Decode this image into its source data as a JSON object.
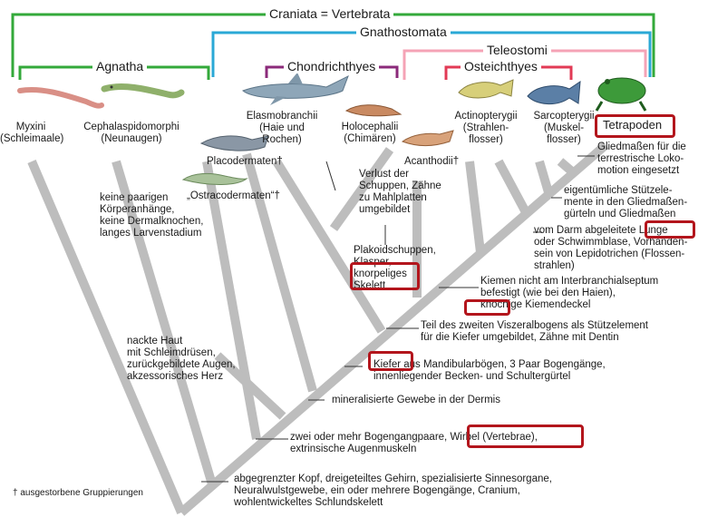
{
  "colors": {
    "craniata": "#33a93a",
    "gnathostomata": "#2aa8d6",
    "teleostomi": "#f5a3b6",
    "chondrichthyes": "#8b2a7a",
    "osteichthyes": "#e23a55",
    "branch": "#bdbdbd",
    "highlight": "#b3151c"
  },
  "brackets": {
    "craniata": "Craniata = Vertebrata",
    "gnathostomata": "Gnathostomata",
    "teleostomi": "Teleostomi",
    "agnatha": "Agnatha",
    "chondrichthyes": "Chondrichthyes",
    "osteichthyes": "Osteichthyes"
  },
  "taxa": {
    "myxini": "Myxini\n(Schleimaale)",
    "cephalaspidomorphi": "Cephalaspidomorphi\n(Neunaugen)",
    "elasmobranchii": "Elasmobranchii\n(Haie und\nRochen)",
    "holocephalii": "Holocephalii\n(Chimären)",
    "actinopterygii": "Actinopterygii\n(Strahlen-\nflosser)",
    "sarcopterygii": "Sarcopterygii\n(Muskel-\nflosser)",
    "tetrapoden": "Tetrapoden",
    "placodermaten": "Placodermaten†",
    "ostracodermaten": "„Ostracodermaten“†",
    "acanthodii": "Acanthodii†"
  },
  "characters": {
    "c1": "Gliedmaßen für die\nterrestrische Loko-\nmotion eingesetzt",
    "c2": "eigentümliche Stützele-\nmente in den Gliedmaßen-\ngürteln und Gliedmaßen",
    "c3": "vom Darm abgeleitete Lunge\noder Schwimmblase, Vorhanden-\nsein von Lepidotrichen (Flossen-\nstrahlen)",
    "c4": "Kiemen nicht am Interbranchialseptum\nbefestigt (wie bei den Haien),\nknöchige Kiemendeckel",
    "c5": "Teil des zweiten Viszeralbogens als Stützelement\nfür die Kiefer umgebildet, Zähne mit Dentin",
    "c6": "Kiefer aus Mandibularbögen, 3 Paar Bogengänge,\ninnenliegender Becken- und Schultergürtel",
    "c7": "mineralisierte Gewebe in der Dermis",
    "c8": "zwei oder mehr Bogengangpaare, Wirbel (Vertebrae),\nextrinsische Augenmuskeln",
    "c9": "abgegrenzter Kopf, dreigeteiltes Gehirn, spezialisierte Sinnesorgane,\nNeuralwulstgewebe, ein oder mehrere Bogengänge, Cranium,\nwohlentwickeltes Schlundskelett",
    "agnatha_traits": "keine paarigen\nKörperanhänge,\nkeine Dermalknochen,\nlanges Larvenstadium",
    "myxini_traits": "nackte Haut\nmit Schleimdrüsen,\nzurückgebildete Augen,\nakzessorisches Herz",
    "holocephalii_traits": "Verlust der\nSchuppen, Zähne\nzu Mahlplatten\numgebildet",
    "chondrichthyes_traits": "Plakoidschuppen,\nKlasper,\nknorpeliges\nSkelett"
  },
  "footnote": "† ausgestorbene Gruppierungen",
  "animals": [
    "worm-like hagfish",
    "lamprey",
    "shark",
    "chimaera",
    "placoderm",
    "ostracoderm",
    "acanthodian",
    "perch",
    "coelacanth",
    "frog"
  ]
}
